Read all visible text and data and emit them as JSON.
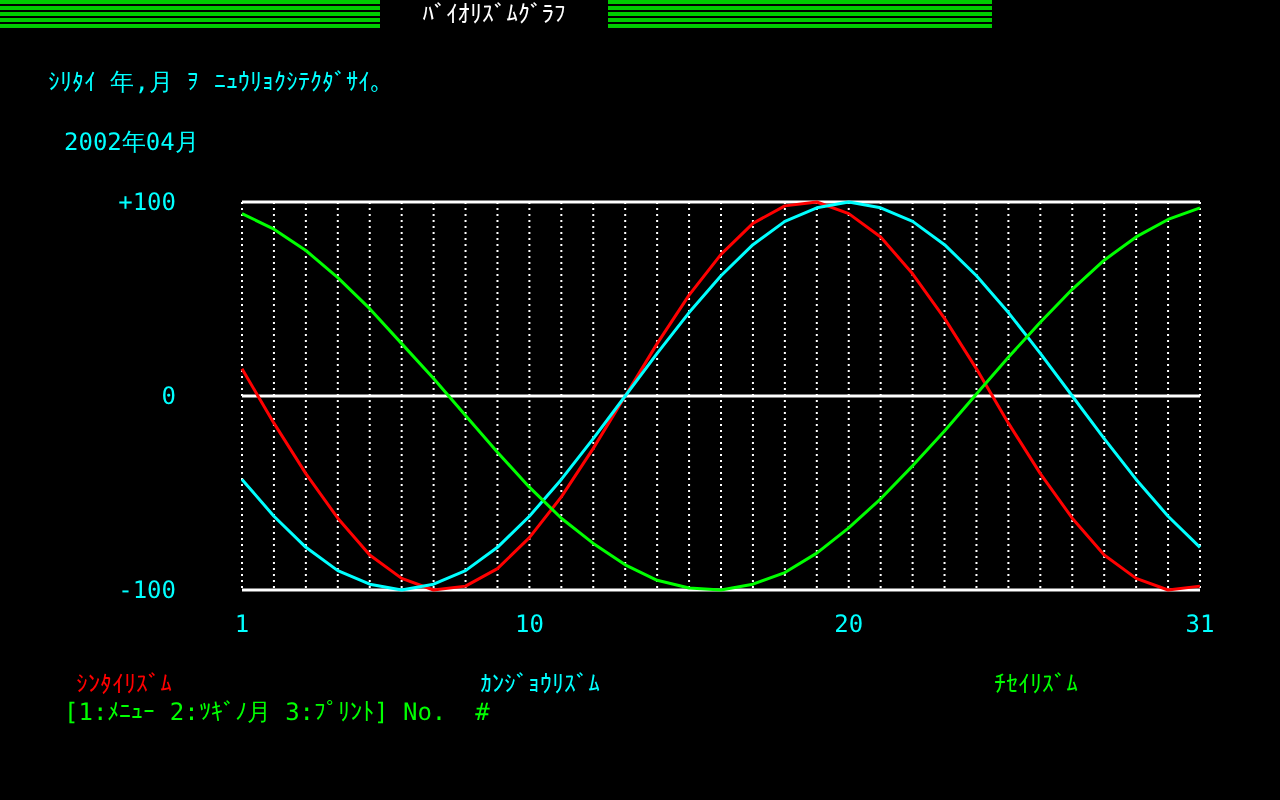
{
  "chart_data": {
    "type": "line",
    "title": "ﾊﾞｲｵﾘｽﾞﾑｸﾞﾗﾌ",
    "subtitle": "ｼﾘﾀｲ 年,月 ｦ ﾆｭｳﾘｮｸｼﾃｸﾀﾞｻｲ｡",
    "annotations": [
      "2002年04月",
      "[1:ﾒﾆｭｰ 2:ﾂｷﾞﾉ月 3:ﾌﾟﾘﾝﾄ] No.  #"
    ],
    "x": [
      1,
      2,
      3,
      4,
      5,
      6,
      7,
      8,
      9,
      10,
      11,
      12,
      13,
      14,
      15,
      16,
      17,
      18,
      19,
      20,
      21,
      22,
      23,
      24,
      25,
      26,
      27,
      28,
      29,
      30,
      31
    ],
    "xlim": [
      1,
      31
    ],
    "xticks": [
      1,
      {
        "value": 2,
        "label": null
      },
      {
        "value": 3,
        "label": null
      },
      {
        "value": 4,
        "label": null
      },
      {
        "value": 5,
        "label": null
      },
      {
        "value": 6,
        "label": null
      },
      {
        "value": 7,
        "label": null
      },
      {
        "value": 8,
        "label": null
      },
      {
        "value": 9,
        "label": null
      },
      10,
      {
        "value": 11,
        "label": null
      },
      {
        "value": 12,
        "label": null
      },
      {
        "value": 13,
        "label": null
      },
      {
        "value": 14,
        "label": null
      },
      {
        "value": 15,
        "label": null
      },
      {
        "value": 16,
        "label": null
      },
      {
        "value": 17,
        "label": null
      },
      {
        "value": 18,
        "label": null
      },
      {
        "value": 19,
        "label": null
      },
      20,
      {
        "value": 21,
        "label": null
      },
      {
        "value": 22,
        "label": null
      },
      {
        "value": 23,
        "label": null
      },
      {
        "value": 24,
        "label": null
      },
      {
        "value": 25,
        "label": null
      },
      {
        "value": 26,
        "label": null
      },
      {
        "value": 27,
        "label": null
      },
      {
        "value": 28,
        "label": null
      },
      {
        "value": 29,
        "label": null
      },
      {
        "value": 30,
        "label": null
      },
      31
    ],
    "ylim": [
      -100,
      100
    ],
    "yticks": [
      -100,
      0,
      {
        "value": 100,
        "label": "+100"
      }
    ],
    "grid": true,
    "legend": "bottom",
    "marker": "none",
    "line_style": "solid",
    "series": [
      {
        "name": "ｼﾝﾀｲﾘｽﾞﾑ",
        "color": "#ff0000",
        "values": [
          14,
          -14,
          -40,
          -63,
          -82,
          -94,
          -100,
          -98,
          -89,
          -73,
          -52,
          -27,
          0,
          27,
          52,
          73,
          89,
          98,
          100,
          94,
          82,
          63,
          40,
          14,
          -14,
          -40,
          -63,
          -82,
          -94,
          -100,
          -98
        ]
      },
      {
        "name": "ｶﾝｼﾞｮｳﾘｽﾞﾑ",
        "color": "#00ffff",
        "values": [
          -43,
          -62,
          -78,
          -90,
          -97,
          -100,
          -97,
          -90,
          -78,
          -62,
          -43,
          -22,
          0,
          22,
          43,
          62,
          78,
          90,
          97,
          100,
          97,
          90,
          78,
          62,
          43,
          22,
          0,
          -22,
          -43,
          -62,
          -78
        ]
      },
      {
        "name": "ﾁｾｲﾘｽﾞﾑ",
        "color": "#00ff00",
        "values": [
          94,
          86,
          75,
          61,
          45,
          27,
          9,
          -10,
          -29,
          -47,
          -63,
          -76,
          -87,
          -95,
          -99,
          -100,
          -97,
          -91,
          -81,
          -68,
          -53,
          -36,
          -18,
          1,
          20,
          38,
          55,
          70,
          82,
          91,
          97
        ]
      }
    ]
  }
}
